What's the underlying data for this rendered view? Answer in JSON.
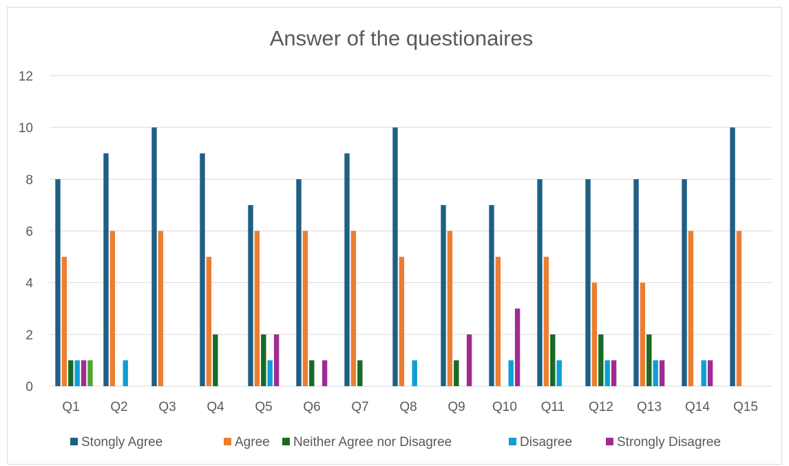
{
  "chart_data": {
    "type": "bar",
    "title": "Answer of the questionaires",
    "xlabel": "",
    "ylabel": "",
    "ylim": [
      0,
      12
    ],
    "yticks": [
      0,
      2,
      4,
      6,
      8,
      10,
      12
    ],
    "grid": true,
    "legend_position": "bottom",
    "categories": [
      "Q1",
      "Q2",
      "Q3",
      "Q4",
      "Q5",
      "Q6",
      "Q7",
      "Q8",
      "Q9",
      "Q10",
      "Q11",
      "Q12",
      "Q13",
      "Q14",
      "Q15"
    ],
    "series": [
      {
        "name": "Stongly Agree",
        "color": "#1f5f85",
        "values": [
          8,
          9,
          10,
          9,
          7,
          8,
          9,
          10,
          7,
          7,
          8,
          8,
          8,
          8,
          10
        ]
      },
      {
        "name": "Agree",
        "color": "#ed7d31",
        "values": [
          5,
          6,
          6,
          5,
          6,
          6,
          6,
          5,
          6,
          5,
          5,
          4,
          4,
          6,
          6
        ]
      },
      {
        "name": "Neither Agree nor Disagree",
        "color": "#196b24",
        "values": [
          1,
          0,
          0,
          2,
          2,
          1,
          1,
          0,
          1,
          0,
          2,
          2,
          2,
          0,
          0
        ]
      },
      {
        "name": "Disagree",
        "color": "#0f9ed5",
        "values": [
          1,
          1,
          0,
          0,
          1,
          0,
          0,
          1,
          0,
          1,
          1,
          1,
          1,
          1,
          0
        ]
      },
      {
        "name": "Strongly Disagree",
        "color": "#a02b93",
        "values": [
          1,
          0,
          0,
          0,
          2,
          1,
          0,
          0,
          2,
          3,
          0,
          1,
          1,
          1,
          0
        ]
      },
      {
        "name": "",
        "color": "#4ea72e",
        "values": [
          1,
          0,
          0,
          0,
          0,
          0,
          0,
          0,
          0,
          0,
          0,
          0,
          0,
          0,
          0
        ]
      }
    ]
  }
}
